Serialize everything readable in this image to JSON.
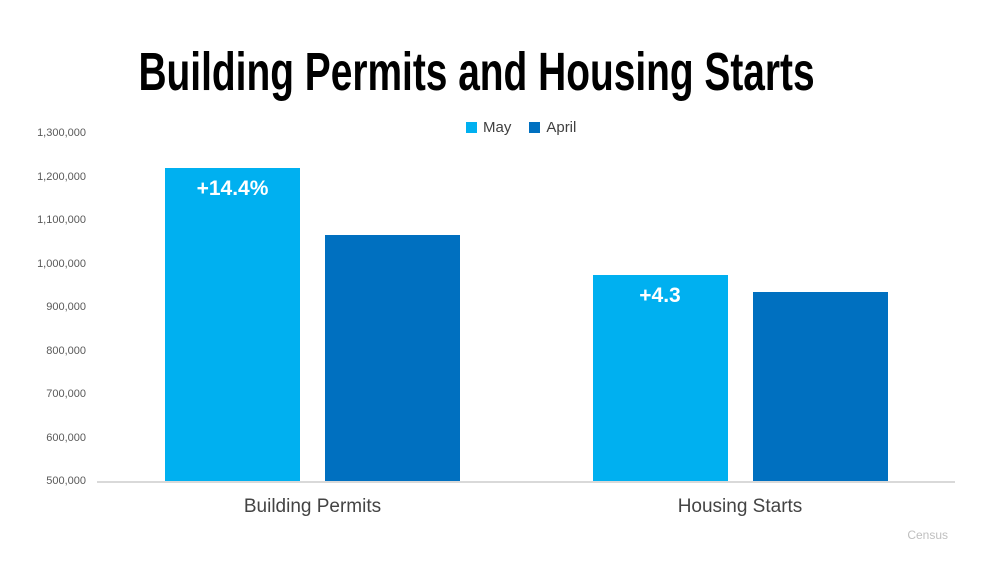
{
  "title": "Building Permits and Housing Starts",
  "attribution": "Census",
  "colors": {
    "may_series": "#00B0F0",
    "april_series": "#0070C0",
    "axis_line": "#D9D9D9",
    "bar_label_text": "#FFFFFF",
    "tick_text": "#595959",
    "category_text": "#444444",
    "title_text": "#000000",
    "attribution_text": "#BFBFBF",
    "background": "#FFFFFF"
  },
  "legend": [
    {
      "name": "May",
      "color": "#00B0F0"
    },
    {
      "name": "April",
      "color": "#0070C0"
    }
  ],
  "chart_data": {
    "type": "bar",
    "title": "Building Permits and Housing Starts",
    "categories": [
      "Building Permits",
      "Housing Starts"
    ],
    "series": [
      {
        "name": "May",
        "color": "#00B0F0",
        "values": [
          1220000,
          974000
        ],
        "bar_labels": [
          "+14.4%",
          "+4.3"
        ]
      },
      {
        "name": "April",
        "color": "#0070C0",
        "values": [
          1066000,
          934000
        ],
        "bar_labels": [
          "",
          ""
        ]
      }
    ],
    "xlabel": "",
    "ylabel": "",
    "ylim": [
      500000,
      1300000
    ],
    "ytick_step": 100000,
    "yticks": [
      "1,300,000",
      "1,200,000",
      "1,100,000",
      "1,000,000",
      "900,000",
      "800,000",
      "700,000",
      "600,000",
      "500,000"
    ],
    "grid": false,
    "legend_position": "top-center"
  }
}
